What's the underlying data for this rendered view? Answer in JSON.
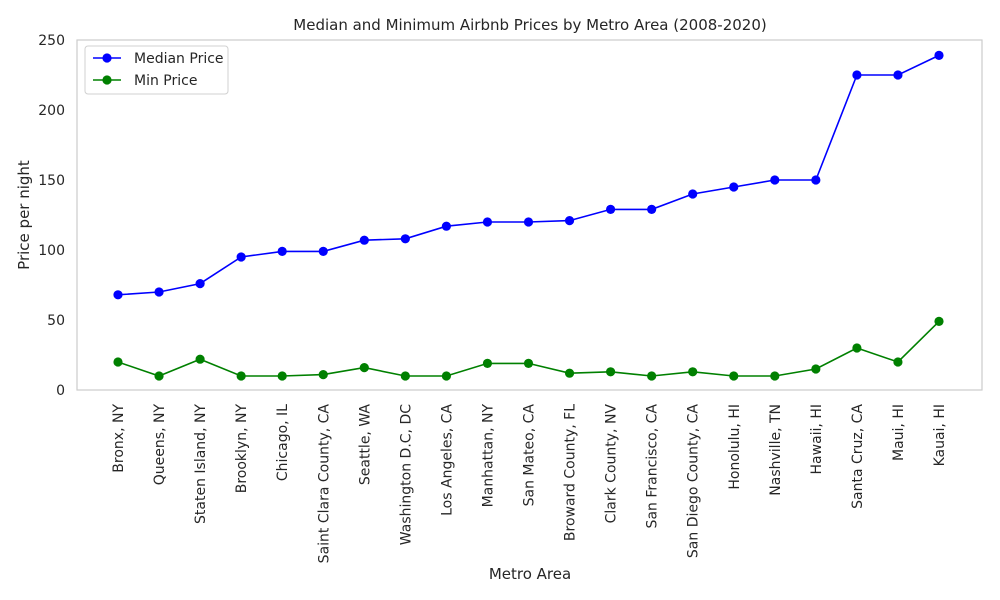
{
  "chart_data": {
    "type": "line",
    "title": "Median and Minimum Airbnb Prices by Metro Area (2008-2020)",
    "xlabel": "Metro Area",
    "ylabel": "Price per night",
    "ylim": [
      0,
      250
    ],
    "yticks": [
      0,
      50,
      100,
      150,
      200,
      250
    ],
    "grid": false,
    "legend_position": "top-left",
    "categories": [
      "Bronx, NY",
      "Queens, NY",
      "Staten Island, NY",
      "Brooklyn, NY",
      "Chicago, IL",
      "Saint Clara County, CA",
      "Seattle, WA",
      "Washington D.C, DC",
      "Los Angeles, CA",
      "Manhattan, NY",
      "San Mateo, CA",
      "Broward County, FL",
      "Clark County, NV",
      "San Francisco, CA",
      "San Diego County, CA",
      "Honolulu, HI",
      "Nashville, TN",
      "Hawaii, HI",
      "Santa Cruz, CA",
      "Maui, HI",
      "Kauai, HI"
    ],
    "series": [
      {
        "name": "Median Price",
        "color": "#0000ff",
        "marker": "circle",
        "values": [
          68,
          70,
          76,
          95,
          99,
          99,
          107,
          108,
          117,
          120,
          120,
          121,
          129,
          129,
          140,
          145,
          150,
          150,
          225,
          225,
          239
        ]
      },
      {
        "name": "Min Price",
        "color": "#008000",
        "marker": "circle",
        "values": [
          20,
          10,
          22,
          10,
          10,
          11,
          16,
          10,
          10,
          19,
          19,
          12,
          13,
          10,
          13,
          10,
          10,
          15,
          30,
          20,
          49
        ]
      }
    ]
  }
}
